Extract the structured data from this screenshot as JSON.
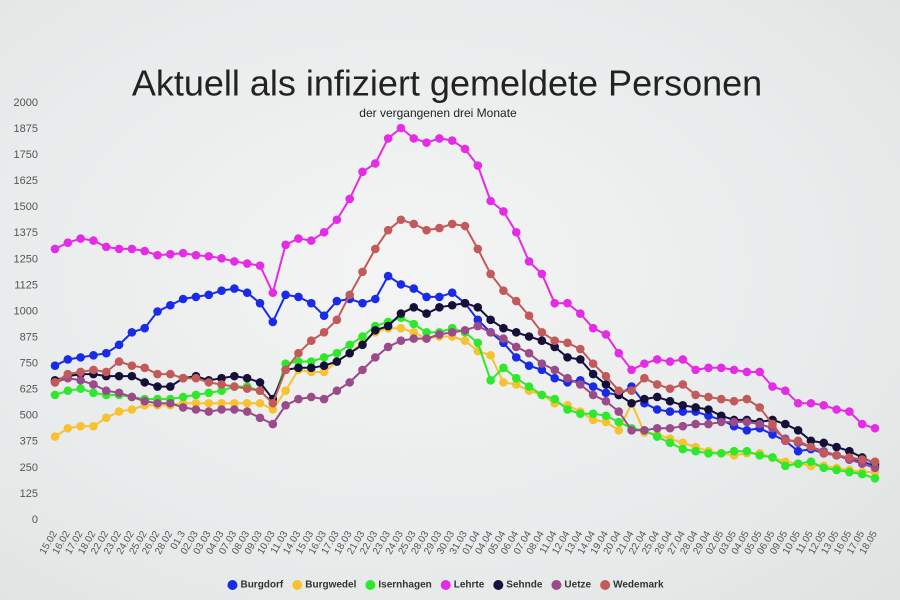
{
  "chart_data": {
    "type": "line",
    "title": "Aktuell als infiziert gemeldete Personen",
    "subtitle": "der vergangenen drei Monate",
    "categories": [
      "15.02",
      "16.02",
      "17.02",
      "18.02",
      "22.02",
      "23.02",
      "24.02",
      "25.02",
      "26.02",
      "28.02",
      "01.3",
      "02.03",
      "03.03",
      "04.03",
      "07.03",
      "08.03",
      "09.03",
      "10.03",
      "11.03",
      "14.03",
      "15.03",
      "16.03",
      "17.03",
      "18.03",
      "21.03",
      "22.03",
      "23.03",
      "24.03",
      "25.03",
      "28.03",
      "29.03",
      "30.03",
      "31.03",
      "01.04",
      "04.04",
      "05.04",
      "06.04",
      "07.04",
      "08.04",
      "11.04",
      "12.04",
      "13.04",
      "14.04",
      "19.04",
      "20.04",
      "21.04",
      "22.04",
      "25.04",
      "26.04",
      "27.04",
      "28.04",
      "29.04",
      "02.05",
      "03.05",
      "04.05",
      "05.05",
      "06.05",
      "09.05",
      "10.05",
      "11.05",
      "12.05",
      "13.05",
      "16.05",
      "17.05",
      "18.05"
    ],
    "series": [
      {
        "name": "Burgdorf",
        "color": "#1a2be8",
        "values": [
          740,
          770,
          780,
          790,
          800,
          840,
          900,
          920,
          1000,
          1030,
          1060,
          1070,
          1080,
          1100,
          1110,
          1090,
          1040,
          950,
          1080,
          1070,
          1040,
          980,
          1050,
          1060,
          1040,
          1060,
          1170,
          1130,
          1110,
          1070,
          1070,
          1090,
          1040,
          960,
          900,
          850,
          780,
          740,
          720,
          680,
          660,
          670,
          640,
          610,
          600,
          640,
          560,
          530,
          520,
          520,
          520,
          500,
          480,
          450,
          430,
          440,
          410,
          380,
          330,
          340,
          320,
          310,
          290,
          280,
          260
        ]
      },
      {
        "name": "Burgwedel",
        "color": "#f7c22f",
        "values": [
          400,
          440,
          450,
          450,
          490,
          520,
          530,
          550,
          550,
          550,
          560,
          560,
          560,
          560,
          560,
          560,
          560,
          530,
          620,
          720,
          710,
          710,
          760,
          800,
          850,
          900,
          920,
          920,
          900,
          870,
          880,
          880,
          860,
          810,
          790,
          660,
          650,
          620,
          600,
          560,
          550,
          520,
          480,
          470,
          430,
          560,
          420,
          410,
          390,
          370,
          350,
          330,
          320,
          310,
          320,
          320,
          300,
          280,
          270,
          260,
          260,
          250,
          240,
          230,
          230
        ]
      },
      {
        "name": "Isernhagen",
        "color": "#2ee82b",
        "values": [
          600,
          620,
          630,
          610,
          600,
          600,
          590,
          580,
          580,
          580,
          590,
          600,
          610,
          620,
          640,
          640,
          620,
          560,
          750,
          760,
          760,
          780,
          800,
          840,
          880,
          930,
          950,
          970,
          940,
          900,
          900,
          920,
          900,
          850,
          670,
          730,
          680,
          640,
          600,
          580,
          530,
          510,
          510,
          500,
          470,
          440,
          430,
          400,
          370,
          340,
          330,
          320,
          320,
          330,
          330,
          310,
          300,
          260,
          270,
          280,
          250,
          240,
          230,
          220,
          200
        ]
      },
      {
        "name": "Lehrte",
        "color": "#e52be5",
        "values": [
          1300,
          1330,
          1350,
          1340,
          1310,
          1300,
          1300,
          1290,
          1270,
          1275,
          1280,
          1270,
          1265,
          1255,
          1240,
          1230,
          1220,
          1090,
          1320,
          1350,
          1340,
          1380,
          1440,
          1540,
          1670,
          1710,
          1830,
          1880,
          1830,
          1810,
          1830,
          1820,
          1780,
          1700,
          1530,
          1480,
          1380,
          1240,
          1180,
          1040,
          1040,
          990,
          920,
          890,
          800,
          720,
          750,
          770,
          760,
          770,
          720,
          730,
          730,
          720,
          710,
          710,
          640,
          620,
          560,
          560,
          550,
          530,
          520,
          460,
          440
        ]
      },
      {
        "name": "Sehnde",
        "color": "#14103a",
        "values": [
          670,
          690,
          700,
          700,
          690,
          690,
          690,
          660,
          640,
          640,
          680,
          690,
          670,
          680,
          690,
          680,
          660,
          580,
          720,
          730,
          730,
          740,
          760,
          800,
          840,
          910,
          930,
          990,
          1020,
          990,
          1020,
          1030,
          1040,
          1020,
          960,
          920,
          900,
          880,
          860,
          830,
          780,
          770,
          700,
          650,
          600,
          560,
          580,
          590,
          570,
          550,
          540,
          530,
          500,
          480,
          480,
          470,
          480,
          460,
          430,
          380,
          370,
          350,
          330,
          300,
          270
        ]
      },
      {
        "name": "Uetze",
        "color": "#9b4a8a",
        "values": [
          660,
          680,
          670,
          650,
          620,
          610,
          590,
          570,
          560,
          560,
          540,
          530,
          520,
          530,
          530,
          520,
          490,
          460,
          550,
          580,
          590,
          580,
          620,
          660,
          720,
          780,
          830,
          860,
          870,
          870,
          890,
          900,
          910,
          930,
          900,
          870,
          830,
          800,
          750,
          720,
          680,
          650,
          600,
          570,
          520,
          430,
          430,
          440,
          440,
          450,
          460,
          460,
          470,
          470,
          470,
          460,
          440,
          390,
          370,
          350,
          330,
          310,
          290,
          270,
          250
        ]
      },
      {
        "name": "Wedemark",
        "color": "#c25a5a",
        "values": [
          660,
          700,
          710,
          720,
          710,
          760,
          740,
          730,
          700,
          700,
          680,
          680,
          660,
          650,
          640,
          630,
          620,
          560,
          720,
          800,
          860,
          900,
          960,
          1080,
          1190,
          1300,
          1390,
          1440,
          1420,
          1390,
          1400,
          1420,
          1410,
          1300,
          1180,
          1100,
          1050,
          980,
          900,
          860,
          850,
          820,
          750,
          690,
          620,
          620,
          680,
          650,
          630,
          650,
          600,
          590,
          580,
          570,
          580,
          540,
          460,
          380,
          380,
          350,
          320,
          310,
          300,
          290,
          280
        ]
      }
    ],
    "ylim": [
      0,
      2000
    ],
    "yticks": [
      0,
      125,
      250,
      375,
      500,
      625,
      750,
      875,
      1000,
      1125,
      1250,
      1375,
      1500,
      1625,
      1750,
      1875,
      2000
    ],
    "legend": "bottom"
  }
}
